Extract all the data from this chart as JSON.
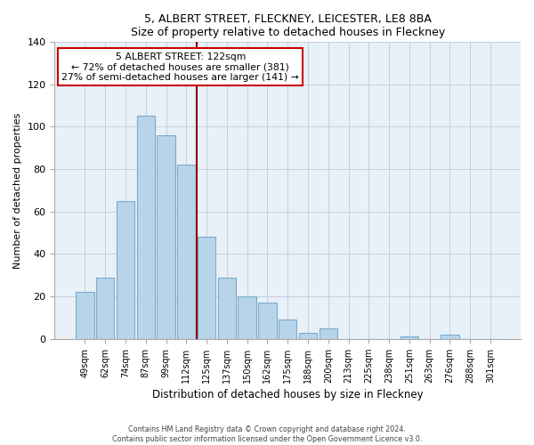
{
  "title1": "5, ALBERT STREET, FLECKNEY, LEICESTER, LE8 8BA",
  "title2": "Size of property relative to detached houses in Fleckney",
  "xlabel": "Distribution of detached houses by size in Fleckney",
  "ylabel": "Number of detached properties",
  "bar_labels": [
    "49sqm",
    "62sqm",
    "74sqm",
    "87sqm",
    "99sqm",
    "112sqm",
    "125sqm",
    "137sqm",
    "150sqm",
    "162sqm",
    "175sqm",
    "188sqm",
    "200sqm",
    "213sqm",
    "225sqm",
    "238sqm",
    "251sqm",
    "263sqm",
    "276sqm",
    "288sqm",
    "301sqm"
  ],
  "bar_values": [
    22,
    29,
    65,
    105,
    96,
    82,
    48,
    29,
    20,
    17,
    9,
    3,
    5,
    0,
    0,
    0,
    1,
    0,
    2,
    0,
    0
  ],
  "bar_color": "#b8d4e8",
  "bar_edge_color": "#7aabcf",
  "vline_x": 5.5,
  "vline_color": "#8b0000",
  "annotation_title": "5 ALBERT STREET: 122sqm",
  "annotation_line1": "← 72% of detached houses are smaller (381)",
  "annotation_line2": "27% of semi-detached houses are larger (141) →",
  "annotation_box_color": "#ffffff",
  "annotation_box_edge": "#cc0000",
  "plot_bg_color": "#e8f0f8",
  "ylim": [
    0,
    140
  ],
  "yticks": [
    0,
    20,
    40,
    60,
    80,
    100,
    120,
    140
  ],
  "footer1": "Contains HM Land Registry data © Crown copyright and database right 2024.",
  "footer2": "Contains public sector information licensed under the Open Government Licence v3.0."
}
